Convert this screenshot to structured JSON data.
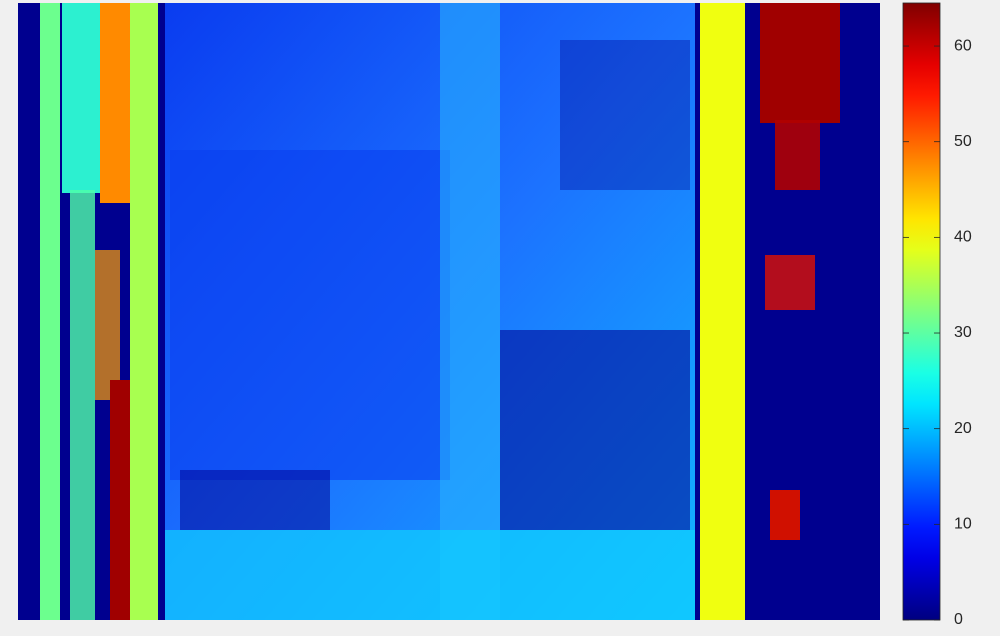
{
  "chart_data": {
    "type": "image",
    "colormap": "jet",
    "clim": [
      0,
      64.5
    ],
    "cticks": [
      0,
      10,
      20,
      30,
      40,
      50,
      60
    ]
  }
}
